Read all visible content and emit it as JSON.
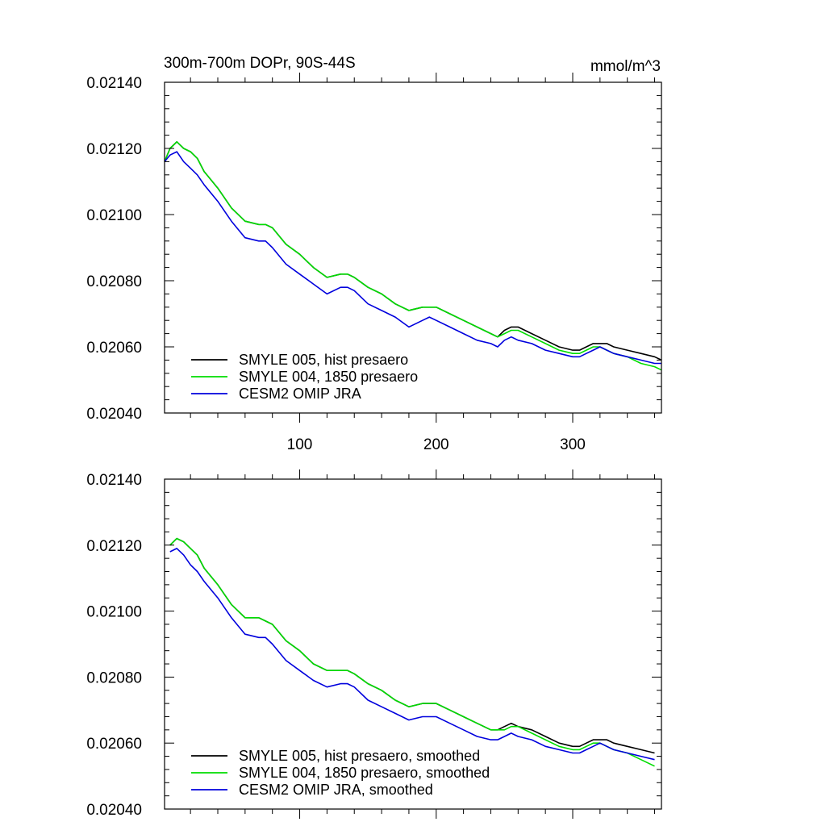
{
  "chart_data": [
    {
      "type": "line",
      "title": "300m-700m DOPr, 90S-44S",
      "units": "mmol/m^3",
      "xlim": [
        1,
        365
      ],
      "ylim": [
        0.0204,
        0.0214
      ],
      "xticks": [
        100,
        200,
        300
      ],
      "xtick_labels": [
        "100",
        "200",
        "300"
      ],
      "yticks": [
        0.0204,
        0.0206,
        0.0208,
        0.021,
        0.0212,
        0.0214
      ],
      "ytick_labels": [
        "0.02040",
        "0.02060",
        "0.02080",
        "0.02100",
        "0.02120",
        "0.02140"
      ],
      "legend_position": "bottom-left",
      "series": [
        {
          "name": "SMYLE 005, hist presaero",
          "color": "#000000",
          "x": [
            1,
            5,
            10,
            15,
            20,
            25,
            30,
            40,
            50,
            60,
            70,
            75,
            80,
            90,
            100,
            110,
            120,
            130,
            135,
            140,
            150,
            160,
            170,
            180,
            190,
            195,
            200,
            210,
            220,
            230,
            240,
            245,
            250,
            255,
            260,
            270,
            280,
            290,
            300,
            305,
            310,
            315,
            320,
            325,
            330,
            340,
            350,
            360,
            365
          ],
          "y": [
            0.02116,
            0.0212,
            0.02122,
            0.0212,
            0.02119,
            0.02117,
            0.02113,
            0.02108,
            0.02102,
            0.02098,
            0.02097,
            0.02097,
            0.02096,
            0.02091,
            0.02088,
            0.02084,
            0.02081,
            0.02082,
            0.02082,
            0.02081,
            0.02078,
            0.02076,
            0.02073,
            0.02071,
            0.02072,
            0.02072,
            0.02072,
            0.0207,
            0.02068,
            0.02066,
            0.02064,
            0.02063,
            0.02065,
            0.02066,
            0.02066,
            0.02064,
            0.02062,
            0.0206,
            0.02059,
            0.02059,
            0.0206,
            0.02061,
            0.02061,
            0.02061,
            0.0206,
            0.02059,
            0.02058,
            0.02057,
            0.02056
          ]
        },
        {
          "name": "SMYLE 004, 1850 presaero",
          "color": "#00dd00",
          "x": [
            1,
            5,
            10,
            15,
            20,
            25,
            30,
            40,
            50,
            60,
            70,
            75,
            80,
            90,
            100,
            110,
            120,
            130,
            135,
            140,
            150,
            160,
            170,
            180,
            190,
            195,
            200,
            210,
            220,
            230,
            240,
            245,
            250,
            255,
            260,
            270,
            280,
            290,
            300,
            305,
            310,
            315,
            320,
            325,
            330,
            340,
            350,
            360,
            365
          ],
          "y": [
            0.02116,
            0.0212,
            0.02122,
            0.0212,
            0.02119,
            0.02117,
            0.02113,
            0.02108,
            0.02102,
            0.02098,
            0.02097,
            0.02097,
            0.02096,
            0.02091,
            0.02088,
            0.02084,
            0.02081,
            0.02082,
            0.02082,
            0.02081,
            0.02078,
            0.02076,
            0.02073,
            0.02071,
            0.02072,
            0.02072,
            0.02072,
            0.0207,
            0.02068,
            0.02066,
            0.02064,
            0.02063,
            0.02064,
            0.02065,
            0.02065,
            0.02063,
            0.02061,
            0.02059,
            0.02058,
            0.02058,
            0.02059,
            0.0206,
            0.0206,
            0.02059,
            0.02058,
            0.02057,
            0.02055,
            0.02054,
            0.02053
          ]
        },
        {
          "name": "CESM2 OMIP JRA",
          "color": "#0000dd",
          "x": [
            1,
            5,
            10,
            15,
            20,
            25,
            30,
            40,
            50,
            60,
            70,
            75,
            80,
            90,
            100,
            110,
            120,
            130,
            135,
            140,
            150,
            160,
            170,
            180,
            190,
            195,
            200,
            210,
            220,
            230,
            240,
            245,
            250,
            255,
            260,
            270,
            280,
            290,
            300,
            305,
            310,
            315,
            320,
            325,
            330,
            340,
            350,
            360,
            365
          ],
          "y": [
            0.02116,
            0.02118,
            0.02119,
            0.02116,
            0.02114,
            0.02112,
            0.02109,
            0.02104,
            0.02098,
            0.02093,
            0.02092,
            0.02092,
            0.0209,
            0.02085,
            0.02082,
            0.02079,
            0.02076,
            0.02078,
            0.02078,
            0.02077,
            0.02073,
            0.02071,
            0.02069,
            0.02066,
            0.02068,
            0.02069,
            0.02068,
            0.02066,
            0.02064,
            0.02062,
            0.02061,
            0.0206,
            0.02062,
            0.02063,
            0.02062,
            0.02061,
            0.02059,
            0.02058,
            0.02057,
            0.02057,
            0.02058,
            0.02059,
            0.0206,
            0.02059,
            0.02058,
            0.02057,
            0.02056,
            0.02055,
            0.02055
          ]
        }
      ]
    },
    {
      "type": "line",
      "title": "",
      "units": "",
      "xlim": [
        1,
        365
      ],
      "ylim": [
        0.0204,
        0.0214
      ],
      "xticks": [
        100,
        200,
        300
      ],
      "xtick_labels": [],
      "yticks": [
        0.0204,
        0.0206,
        0.0208,
        0.021,
        0.0212,
        0.0214
      ],
      "ytick_labels": [
        "0.02040",
        "0.02060",
        "0.02080",
        "0.02100",
        "0.02120",
        "0.02140"
      ],
      "legend_position": "bottom-left",
      "series": [
        {
          "name": "SMYLE 005, hist presaero, smoothed",
          "color": "#000000",
          "x": [
            5,
            10,
            15,
            20,
            25,
            30,
            40,
            50,
            60,
            70,
            75,
            80,
            90,
            100,
            110,
            120,
            130,
            135,
            140,
            150,
            160,
            170,
            180,
            190,
            195,
            200,
            210,
            220,
            230,
            240,
            245,
            250,
            255,
            260,
            270,
            280,
            290,
            300,
            305,
            310,
            315,
            320,
            325,
            330,
            340,
            350,
            360
          ],
          "y": [
            0.0212,
            0.02122,
            0.02121,
            0.02119,
            0.02117,
            0.02113,
            0.02108,
            0.02102,
            0.02098,
            0.02098,
            0.02097,
            0.02096,
            0.02091,
            0.02088,
            0.02084,
            0.02082,
            0.02082,
            0.02082,
            0.02081,
            0.02078,
            0.02076,
            0.02073,
            0.02071,
            0.02072,
            0.02072,
            0.02072,
            0.0207,
            0.02068,
            0.02066,
            0.02064,
            0.02064,
            0.02065,
            0.02066,
            0.02065,
            0.02064,
            0.02062,
            0.0206,
            0.02059,
            0.02059,
            0.0206,
            0.02061,
            0.02061,
            0.02061,
            0.0206,
            0.02059,
            0.02058,
            0.02057
          ]
        },
        {
          "name": "SMYLE 004, 1850 presaero, smoothed",
          "color": "#00dd00",
          "x": [
            5,
            10,
            15,
            20,
            25,
            30,
            40,
            50,
            60,
            70,
            75,
            80,
            90,
            100,
            110,
            120,
            130,
            135,
            140,
            150,
            160,
            170,
            180,
            190,
            195,
            200,
            210,
            220,
            230,
            240,
            245,
            250,
            255,
            260,
            270,
            280,
            290,
            300,
            305,
            310,
            315,
            320,
            325,
            330,
            340,
            350,
            360
          ],
          "y": [
            0.0212,
            0.02122,
            0.02121,
            0.02119,
            0.02117,
            0.02113,
            0.02108,
            0.02102,
            0.02098,
            0.02098,
            0.02097,
            0.02096,
            0.02091,
            0.02088,
            0.02084,
            0.02082,
            0.02082,
            0.02082,
            0.02081,
            0.02078,
            0.02076,
            0.02073,
            0.02071,
            0.02072,
            0.02072,
            0.02072,
            0.0207,
            0.02068,
            0.02066,
            0.02064,
            0.02064,
            0.02064,
            0.02065,
            0.02065,
            0.02063,
            0.02061,
            0.02059,
            0.02058,
            0.02058,
            0.02059,
            0.0206,
            0.0206,
            0.02059,
            0.02058,
            0.02057,
            0.02055,
            0.02053
          ]
        },
        {
          "name": "CESM2 OMIP JRA, smoothed",
          "color": "#0000dd",
          "x": [
            5,
            10,
            15,
            20,
            25,
            30,
            40,
            50,
            60,
            70,
            75,
            80,
            90,
            100,
            110,
            120,
            130,
            135,
            140,
            150,
            160,
            170,
            180,
            190,
            195,
            200,
            210,
            220,
            230,
            240,
            245,
            250,
            255,
            260,
            270,
            280,
            290,
            300,
            305,
            310,
            315,
            320,
            325,
            330,
            340,
            350,
            360
          ],
          "y": [
            0.02118,
            0.02119,
            0.02117,
            0.02114,
            0.02112,
            0.02109,
            0.02104,
            0.02098,
            0.02093,
            0.02092,
            0.02092,
            0.0209,
            0.02085,
            0.02082,
            0.02079,
            0.02077,
            0.02078,
            0.02078,
            0.02077,
            0.02073,
            0.02071,
            0.02069,
            0.02067,
            0.02068,
            0.02068,
            0.02068,
            0.02066,
            0.02064,
            0.02062,
            0.02061,
            0.02061,
            0.02062,
            0.02063,
            0.02062,
            0.02061,
            0.02059,
            0.02058,
            0.02057,
            0.02057,
            0.02058,
            0.02059,
            0.0206,
            0.02059,
            0.02058,
            0.02057,
            0.02056,
            0.02055
          ]
        }
      ]
    }
  ]
}
